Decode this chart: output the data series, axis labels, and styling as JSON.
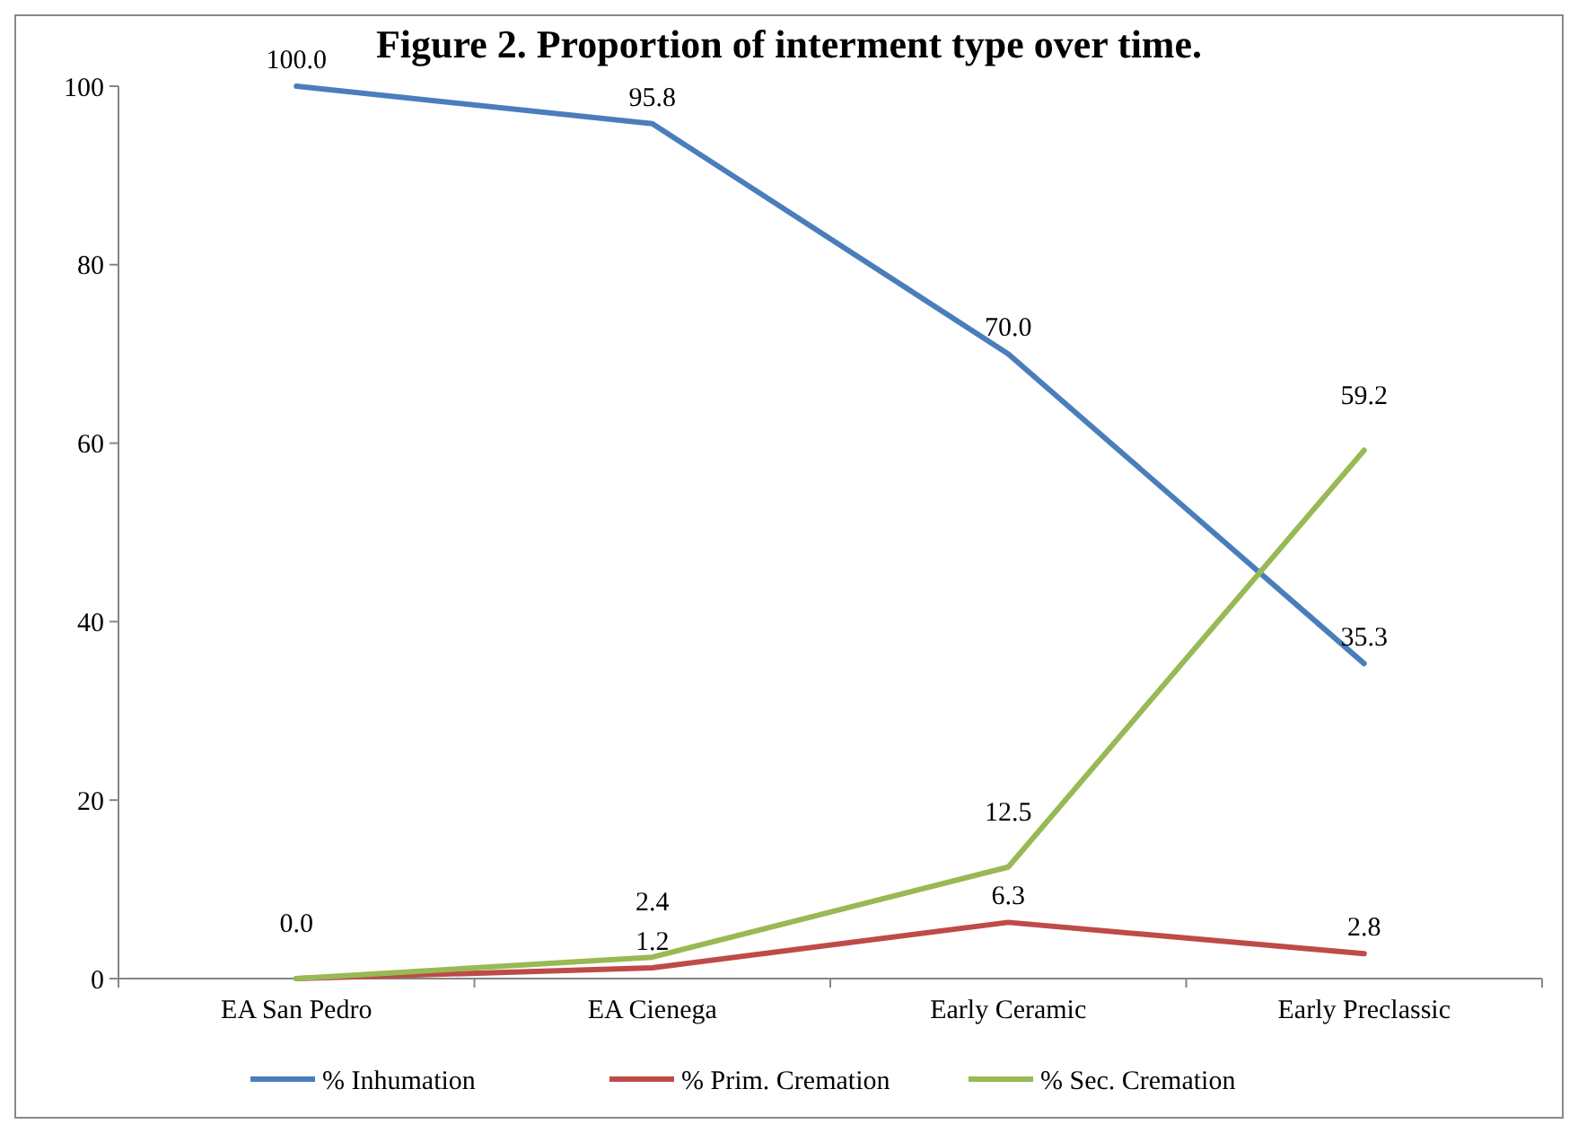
{
  "chart_data": {
    "type": "line",
    "title": "Figure 2. Proportion of interment type over time.",
    "categories": [
      "EA San Pedro",
      "EA Cienega",
      "Early Ceramic",
      "Early Preclassic"
    ],
    "series": [
      {
        "name": "% Inhumation",
        "color": "#4a7ebb",
        "values": [
          100,
          95.8,
          70,
          35.3
        ],
        "value_labels": [
          "100.0",
          "95.8",
          "70.0",
          "35.3"
        ]
      },
      {
        "name": "% Prim. Cremation",
        "color": "#be4b48",
        "values": [
          0,
          1.2,
          6.3,
          2.8
        ],
        "value_labels": [
          null,
          "1.2",
          "6.3",
          "2.8"
        ]
      },
      {
        "name": "% Sec. Cremation",
        "color": "#98b954",
        "values": [
          0,
          2.4,
          12.5,
          59.2
        ],
        "value_labels": [
          "0.0",
          "2.4",
          "12.5",
          "59.2"
        ]
      }
    ],
    "ylim": [
      0,
      100
    ],
    "yticks": [
      0,
      20,
      40,
      60,
      80,
      100
    ],
    "legend": "bottom",
    "marker": "none",
    "line_style": "solid"
  }
}
